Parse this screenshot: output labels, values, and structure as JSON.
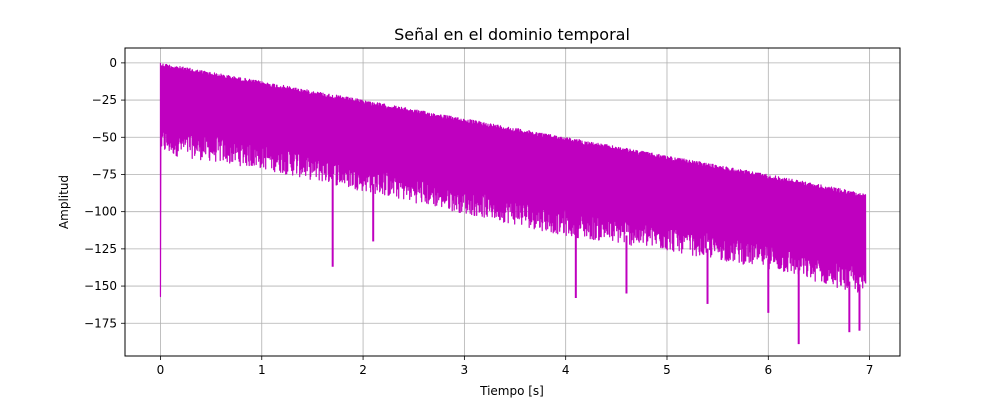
{
  "chart_data": {
    "type": "line",
    "title": "Señal en el dominio temporal",
    "xlabel": "Tiempo [s]",
    "ylabel": "Amplitud",
    "xlim": [
      -0.35,
      7.3
    ],
    "ylim": [
      -197,
      10
    ],
    "xticks": [
      0,
      1,
      2,
      3,
      4,
      5,
      6,
      7
    ],
    "xtick_labels": [
      "0",
      "1",
      "2",
      "3",
      "4",
      "5",
      "6",
      "7"
    ],
    "yticks": [
      0,
      -25,
      -50,
      -75,
      -100,
      -125,
      -150,
      -175
    ],
    "ytick_labels": [
      "0",
      "−25",
      "−50",
      "−75",
      "−100",
      "−125",
      "−150",
      "−175"
    ],
    "grid": true,
    "series": [
      {
        "color": "#bf00bf",
        "description_points": {
          "upper_envelope": [
            [
              0.0,
              0.0
            ],
            [
              1.0,
              -12.5
            ],
            [
              2.0,
              -25.0
            ],
            [
              3.0,
              -37.5
            ],
            [
              4.0,
              -50.0
            ],
            [
              5.0,
              -62.5
            ],
            [
              6.0,
              -75.0
            ],
            [
              6.96,
              -88.0
            ]
          ],
          "lower_envelope": [
            [
              0.02,
              -55.0
            ],
            [
              1.0,
              -65.0
            ],
            [
              2.0,
              -80.0
            ],
            [
              3.0,
              -95.0
            ],
            [
              4.0,
              -110.0
            ],
            [
              5.0,
              -120.0
            ],
            [
              6.0,
              -132.0
            ],
            [
              6.96,
              -150.0
            ]
          ],
          "spikes": [
            [
              0.0,
              -157.0
            ],
            [
              1.7,
              -137.0
            ],
            [
              2.1,
              -120.0
            ],
            [
              4.1,
              -158.0
            ],
            [
              4.6,
              -155.0
            ],
            [
              5.4,
              -162.0
            ],
            [
              6.0,
              -168.0
            ],
            [
              6.3,
              -189.0
            ],
            [
              6.8,
              -181.0
            ],
            [
              6.9,
              -180.0
            ]
          ]
        }
      }
    ]
  }
}
